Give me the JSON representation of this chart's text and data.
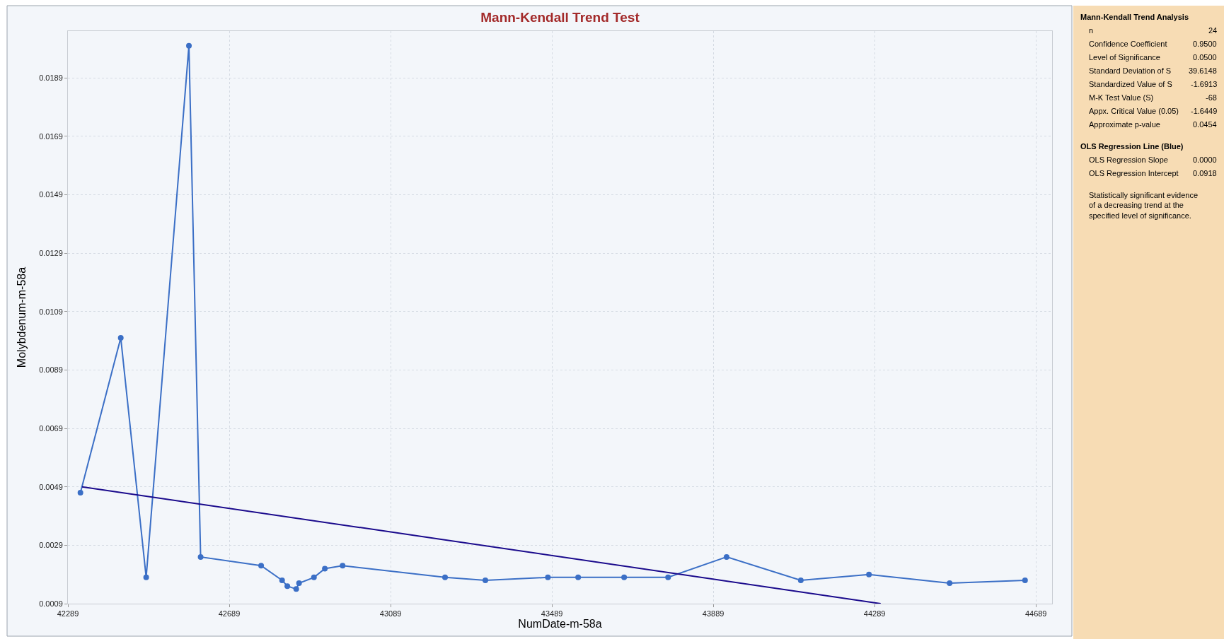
{
  "chart_data": {
    "type": "line",
    "title": "Mann-Kendall Trend Test",
    "xlabel": "NumDate-m-58a",
    "ylabel": "Molybdenum-m-58a",
    "xlim": [
      42289,
      44729
    ],
    "ylim": [
      0.0009,
      0.0205
    ],
    "xticks": [
      42289,
      42689,
      43089,
      43489,
      43889,
      44289,
      44689
    ],
    "yticks": [
      0.0009,
      0.0029,
      0.0049,
      0.0069,
      0.0089,
      0.0109,
      0.0129,
      0.0149,
      0.0169,
      0.0189
    ],
    "grid": true,
    "series": [
      {
        "color": "#3b6fc6",
        "marker": "circle",
        "x": [
          42320,
          42420,
          42483,
          42589,
          42618,
          42768,
          42820,
          42833,
          42855,
          42862,
          42899,
          42926,
          42970,
          43224,
          43324,
          43479,
          43554,
          43668,
          43777,
          43922,
          44106,
          44275,
          44475,
          44662
        ],
        "values": [
          0.0047,
          0.01,
          0.0018,
          0.02,
          0.0025,
          0.0022,
          0.0017,
          0.0015,
          0.0014,
          0.0016,
          0.0018,
          0.0021,
          0.0022,
          0.0018,
          0.0017,
          0.0018,
          0.0018,
          0.0018,
          0.0018,
          0.0025,
          0.0017,
          0.0019,
          0.0016,
          0.0017
        ]
      },
      {
        "color": "#1a0a8c",
        "marker": "none",
        "x": [
          42324,
          44304
        ],
        "values": [
          0.0049,
          0.0009
        ]
      }
    ],
    "annotations": [
      "Mann-Kendall Trend Analysis",
      "n",
      "24",
      "Confidence Coefficient",
      "0.9500",
      "Level of Significance",
      "0.0500",
      "Standard Deviation of S",
      "39.6148",
      "Standardized Value of S",
      "-1.6913",
      "M-K Test Value (S)",
      "-68",
      "Appx. Critical Value (0.05)",
      "-1.6449",
      "Approximate p-value",
      "0.0454",
      "OLS Regression Line (Blue)",
      "OLS Regression Slope",
      "0.0000",
      "OLS Regression Intercept",
      "0.0918",
      "Statistically significant evidence\nof a decreasing trend at the\nspecified level of significance."
    ]
  }
}
